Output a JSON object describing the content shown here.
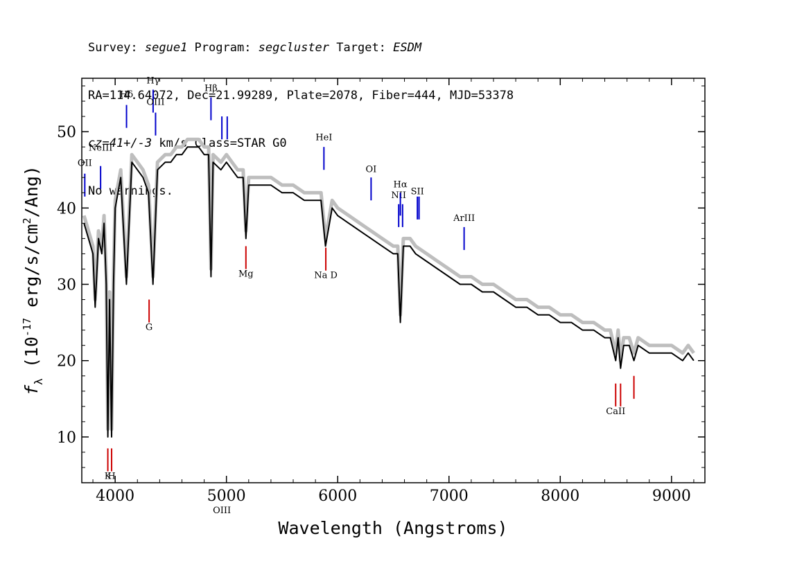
{
  "header": {
    "line1": {
      "survey_label": "Survey: ",
      "survey": "segue1",
      "program_label": " Program: ",
      "program": "segcluster",
      "target_label": " Target: ",
      "target": "ESDM"
    },
    "line2": "RA=114.64072, Dec=21.99289, Plate=2078, Fiber=444, MJD=53378",
    "line3": {
      "cz": "cz=41+/-3",
      "rest": " km/s Class=STAR G0"
    },
    "line4": "No warnings."
  },
  "chart_data": {
    "type": "line",
    "xlabel": "Wavelength (Angstroms)",
    "ylabel": "f_λ (10^-17 erg/s/cm^2/Ang)",
    "xlim": [
      3700,
      9300
    ],
    "ylim": [
      4,
      57
    ],
    "x_ticks": [
      4000,
      5000,
      6000,
      7000,
      8000,
      9000
    ],
    "x_tick_labels": [
      "4000",
      "5000",
      "6000",
      "7000",
      "8000",
      "9000"
    ],
    "y_ticks": [
      10,
      20,
      30,
      40,
      50
    ],
    "y_tick_labels": [
      "10",
      "20",
      "30",
      "40",
      "50"
    ],
    "series": [
      {
        "color": "#000000",
        "x": [
          3720,
          3800,
          3820,
          3850,
          3880,
          3900,
          3920,
          3934,
          3950,
          3968,
          3985,
          4000,
          4050,
          4101,
          4150,
          4200,
          4250,
          4300,
          4340,
          4380,
          4450,
          4500,
          4550,
          4600,
          4650,
          4700,
          4750,
          4800,
          4840,
          4861,
          4880,
          4950,
          5000,
          5050,
          5100,
          5150,
          5175,
          5200,
          5300,
          5400,
          5500,
          5600,
          5700,
          5800,
          5850,
          5890,
          5950,
          6000,
          6100,
          6200,
          6300,
          6400,
          6500,
          6540,
          6563,
          6590,
          6650,
          6700,
          6800,
          6900,
          7000,
          7100,
          7200,
          7300,
          7400,
          7500,
          7600,
          7700,
          7800,
          7900,
          8000,
          8100,
          8200,
          8300,
          8400,
          8450,
          8498,
          8520,
          8542,
          8570,
          8620,
          8662,
          8700,
          8800,
          8900,
          9000,
          9100,
          9150,
          9200
        ],
        "y": [
          38,
          34,
          27,
          36,
          34,
          38,
          30,
          10,
          28,
          10,
          30,
          40,
          44,
          30,
          46,
          45,
          44,
          42,
          30,
          45,
          46,
          46,
          47,
          47,
          48,
          48,
          48,
          47,
          47,
          31,
          46,
          45,
          46,
          45,
          44,
          44,
          36,
          43,
          43,
          43,
          42,
          42,
          41,
          41,
          41,
          35,
          40,
          39,
          38,
          37,
          36,
          35,
          34,
          34,
          25,
          35,
          35,
          34,
          33,
          32,
          31,
          30,
          30,
          29,
          29,
          28,
          27,
          27,
          26,
          26,
          25,
          25,
          24,
          24,
          23,
          23,
          20,
          23,
          19,
          22,
          22,
          20,
          22,
          21,
          21,
          21,
          20,
          21,
          20
        ]
      },
      {
        "color": "#bebebe",
        "x": [
          3720,
          3800,
          3820,
          3850,
          3880,
          3900,
          3920,
          3934,
          3950,
          3968,
          3985,
          4000,
          4050,
          4101,
          4150,
          4200,
          4250,
          4300,
          4340,
          4380,
          4450,
          4500,
          4550,
          4600,
          4650,
          4700,
          4750,
          4800,
          4840,
          4861,
          4880,
          4950,
          5000,
          5050,
          5100,
          5150,
          5175,
          5200,
          5300,
          5400,
          5500,
          5600,
          5700,
          5800,
          5850,
          5890,
          5950,
          6000,
          6100,
          6200,
          6300,
          6400,
          6500,
          6540,
          6563,
          6590,
          6650,
          6700,
          6800,
          6900,
          7000,
          7100,
          7200,
          7300,
          7400,
          7500,
          7600,
          7700,
          7800,
          7900,
          8000,
          8100,
          8200,
          8300,
          8400,
          8450,
          8498,
          8520,
          8542,
          8570,
          8620,
          8662,
          8700,
          8800,
          8900,
          9000,
          9100,
          9150,
          9200
        ],
        "y": [
          39,
          35,
          28,
          37,
          35,
          39,
          31,
          11,
          29,
          11,
          31,
          41,
          45,
          31,
          47,
          46,
          45,
          43,
          31,
          46,
          47,
          47,
          48,
          48,
          49,
          49,
          49,
          48,
          48,
          32,
          47,
          46,
          47,
          46,
          45,
          45,
          37,
          44,
          44,
          44,
          43,
          43,
          42,
          42,
          42,
          36,
          41,
          40,
          39,
          38,
          37,
          36,
          35,
          35,
          26,
          36,
          36,
          35,
          34,
          33,
          32,
          31,
          31,
          30,
          30,
          29,
          28,
          28,
          27,
          27,
          26,
          26,
          25,
          25,
          24,
          24,
          21,
          24,
          20,
          23,
          23,
          21,
          23,
          22,
          22,
          22,
          21,
          22,
          21
        ]
      }
    ],
    "emission_lines": [
      {
        "label": "OII",
        "wave": 3727,
        "ybot": 41.5,
        "ytop": 44.5,
        "label_y": 45.5,
        "color": "#0000cc"
      },
      {
        "label": "NeIII",
        "wave": 3869,
        "ybot": 42.5,
        "ytop": 45.5,
        "label_y": 47.5,
        "color": "#0000cc"
      },
      {
        "label": "Hδ",
        "wave": 4102,
        "ybot": 50.5,
        "ytop": 53.5,
        "label_y": 54.5,
        "color": "#0000cc"
      },
      {
        "label": "Hγ",
        "wave": 4341,
        "ybot": 52.5,
        "ytop": 55.5,
        "label_y": 56.3,
        "color": "#0000cc"
      },
      {
        "label": "OIII",
        "wave": 4363,
        "ybot": 49.5,
        "ytop": 52.5,
        "label_y": 53.5,
        "color": "#0000cc"
      },
      {
        "label": "Hβ",
        "wave": 4861,
        "ybot": 51.5,
        "ytop": 54.5,
        "label_y": 55.3,
        "color": "#0000cc"
      },
      {
        "label": "OIII",
        "wave": 4959,
        "ybot": 49.0,
        "ytop": 52.0,
        "label_y": 0,
        "color": "#0000cc"
      },
      {
        "label": "",
        "wave": 5007,
        "ybot": 49.0,
        "ytop": 52.0,
        "label_y": 53.0,
        "color": "#0000cc"
      },
      {
        "label": "HeI",
        "wave": 5876,
        "ybot": 45.0,
        "ytop": 48.0,
        "label_y": 48.9,
        "color": "#0000cc"
      },
      {
        "label": "OI",
        "wave": 6300,
        "ybot": 41.0,
        "ytop": 44.0,
        "label_y": 44.7,
        "color": "#0000cc"
      },
      {
        "label": "NII",
        "wave": 6548,
        "ybot": 37.5,
        "ytop": 40.5,
        "label_y": 41.3,
        "color": "#0000cc"
      },
      {
        "label": "Hα",
        "wave": 6563,
        "ybot": 39.0,
        "ytop": 42.0,
        "label_y": 42.7,
        "color": "#0000cc"
      },
      {
        "label": "",
        "wave": 6583,
        "ybot": 37.5,
        "ytop": 40.5,
        "label_y": 0,
        "color": "#0000cc"
      },
      {
        "label": "SII",
        "wave": 6716,
        "ybot": 38.5,
        "ytop": 41.5,
        "label_y": 41.8,
        "color": "#0000cc"
      },
      {
        "label": "",
        "wave": 6731,
        "ybot": 38.5,
        "ytop": 41.5,
        "label_y": 0,
        "color": "#0000cc"
      },
      {
        "label": "ArIII",
        "wave": 7136,
        "ybot": 34.5,
        "ytop": 37.5,
        "label_y": 38.3,
        "color": "#0000cc"
      }
    ],
    "absorption_lines": [
      {
        "label": "K",
        "wave": 3934,
        "ybot": 5.5,
        "ytop": 8.5,
        "label_y": 4.5,
        "color": "#cc0000"
      },
      {
        "label": "H",
        "wave": 3968,
        "ybot": 5.5,
        "ytop": 8.5,
        "label_y": 4.5,
        "color": "#cc0000"
      },
      {
        "label": "G",
        "wave": 4305,
        "ybot": 25.0,
        "ytop": 28.0,
        "label_y": 24.0,
        "color": "#cc0000"
      },
      {
        "label": "Mg",
        "wave": 5175,
        "ybot": 32.0,
        "ytop": 35.0,
        "label_y": 31.0,
        "color": "#cc0000"
      },
      {
        "label": "Na D",
        "wave": 5893,
        "ybot": 31.8,
        "ytop": 34.8,
        "label_y": 30.8,
        "color": "#cc0000"
      },
      {
        "label": "CaII",
        "wave": 8498,
        "ybot": 14.0,
        "ytop": 17.0,
        "label_y": 13.0,
        "color": "#cc0000"
      },
      {
        "label": "",
        "wave": 8542,
        "ybot": 14.0,
        "ytop": 17.0,
        "label_y": 0,
        "color": "#cc0000"
      },
      {
        "label": "",
        "wave": 8662,
        "ybot": 15.0,
        "ytop": 18.0,
        "label_y": 0,
        "color": "#cc0000"
      }
    ]
  }
}
